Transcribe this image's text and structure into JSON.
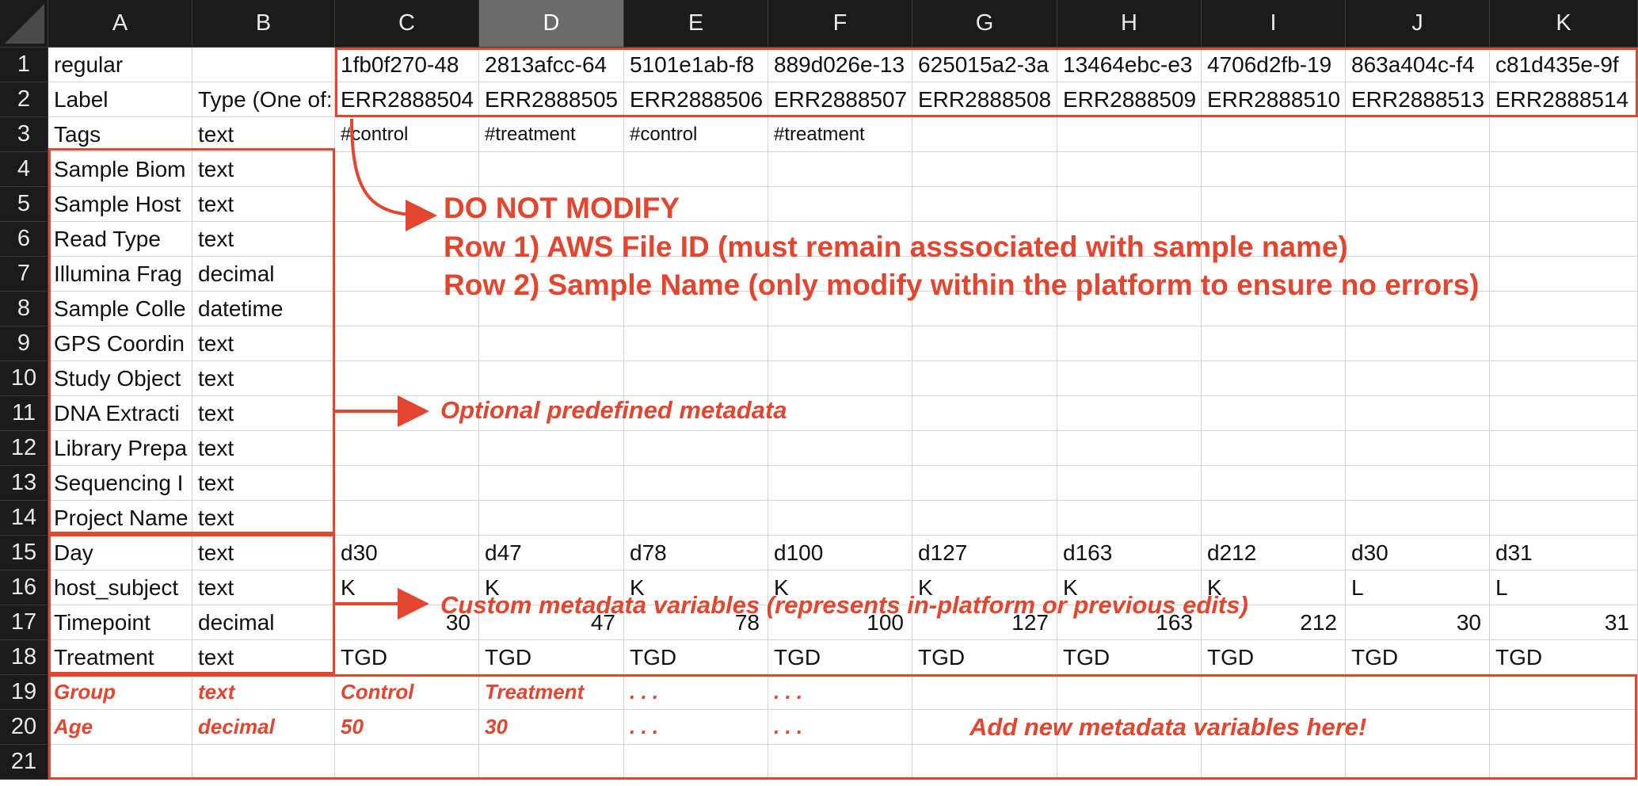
{
  "columns": [
    "A",
    "B",
    "C",
    "D",
    "E",
    "F",
    "G",
    "H",
    "I",
    "J",
    "K"
  ],
  "selected_column": "D",
  "rows": [
    {
      "n": "1",
      "cells": [
        "regular",
        "",
        "1fb0f270-48",
        "2813afcc-64",
        "5101e1ab-f8",
        "889d026e-13",
        "625015a2-3a",
        "13464ebc-e3",
        "4706d2fb-19",
        "863a404c-f4",
        "c81d435e-9f"
      ]
    },
    {
      "n": "2",
      "cells": [
        "Label",
        "Type (One of:",
        "ERR2888504",
        "ERR2888505",
        "ERR2888506",
        "ERR2888507",
        "ERR2888508",
        "ERR2888509",
        "ERR2888510",
        "ERR2888513",
        "ERR2888514"
      ]
    },
    {
      "n": "3",
      "cells": [
        "Tags",
        "text",
        "#control",
        "#treatment",
        "#control",
        "#treatment",
        "",
        "",
        "",
        "",
        ""
      ]
    },
    {
      "n": "4",
      "cells": [
        "Sample Biom",
        "text",
        "",
        "",
        "",
        "",
        "",
        "",
        "",
        "",
        ""
      ]
    },
    {
      "n": "5",
      "cells": [
        "Sample Host",
        "text",
        "",
        "",
        "",
        "",
        "",
        "",
        "",
        "",
        ""
      ]
    },
    {
      "n": "6",
      "cells": [
        "Read Type",
        "text",
        "",
        "",
        "",
        "",
        "",
        "",
        "",
        "",
        ""
      ]
    },
    {
      "n": "7",
      "cells": [
        "Illumina Frag",
        "decimal",
        "",
        "",
        "",
        "",
        "",
        "",
        "",
        "",
        ""
      ]
    },
    {
      "n": "8",
      "cells": [
        "Sample Colle",
        "datetime",
        "",
        "",
        "",
        "",
        "",
        "",
        "",
        "",
        ""
      ]
    },
    {
      "n": "9",
      "cells": [
        "GPS Coordin",
        "text",
        "",
        "",
        "",
        "",
        "",
        "",
        "",
        "",
        ""
      ]
    },
    {
      "n": "10",
      "cells": [
        "Study Object",
        "text",
        "",
        "",
        "",
        "",
        "",
        "",
        "",
        "",
        ""
      ]
    },
    {
      "n": "11",
      "cells": [
        "DNA Extracti",
        "text",
        "",
        "",
        "",
        "",
        "",
        "",
        "",
        "",
        ""
      ]
    },
    {
      "n": "12",
      "cells": [
        "Library Prepa",
        "text",
        "",
        "",
        "",
        "",
        "",
        "",
        "",
        "",
        ""
      ]
    },
    {
      "n": "13",
      "cells": [
        "Sequencing I",
        "text",
        "",
        "",
        "",
        "",
        "",
        "",
        "",
        "",
        ""
      ]
    },
    {
      "n": "14",
      "cells": [
        "Project Name",
        "text",
        "",
        "",
        "",
        "",
        "",
        "",
        "",
        "",
        ""
      ]
    },
    {
      "n": "15",
      "cells": [
        "Day",
        "text",
        "d30",
        "d47",
        "d78",
        "d100",
        "d127",
        "d163",
        "d212",
        "d30",
        "d31"
      ]
    },
    {
      "n": "16",
      "cells": [
        "host_subject",
        "text",
        "K",
        "K",
        "K",
        "K",
        "K",
        "K",
        "K",
        "L",
        "L"
      ]
    },
    {
      "n": "17",
      "cells": [
        "Timepoint",
        "decimal",
        "30",
        "47",
        "78",
        "100",
        "127",
        "163",
        "212",
        "30",
        "31"
      ]
    },
    {
      "n": "18",
      "cells": [
        "Treatment",
        "text",
        "TGD",
        "TGD",
        "TGD",
        "TGD",
        "TGD",
        "TGD",
        "TGD",
        "TGD",
        "TGD"
      ]
    },
    {
      "n": "19",
      "cells": [
        "Group",
        "text",
        "Control",
        "Treatment",
        ". . .",
        ". . .",
        "",
        "",
        "",
        "",
        ""
      ]
    },
    {
      "n": "20",
      "cells": [
        "Age",
        "decimal",
        "50",
        "30",
        ". . .",
        ". . .",
        "",
        "",
        "",
        "",
        ""
      ]
    },
    {
      "n": "21",
      "cells": [
        "",
        "",
        "",
        "",
        "",
        "",
        "",
        "",
        "",
        "",
        ""
      ]
    }
  ],
  "annotations": {
    "do_not_modify": "DO NOT MODIFY",
    "row1_note": "Row 1) AWS File ID (must remain asssociated with sample name)",
    "row2_note": "Row 2) Sample Name (only modify within the platform to ensure no errors)",
    "optional": "Optional predefined metadata",
    "custom": "Custom metadata variables (represents in-platform or previous edits)",
    "add_new": "Add new metadata variables here!"
  },
  "colors": {
    "accent": "#e3452f",
    "header_bg": "#1b1b1b",
    "header_selected": "#6b6b6b",
    "grid": "#d4d4d4"
  }
}
